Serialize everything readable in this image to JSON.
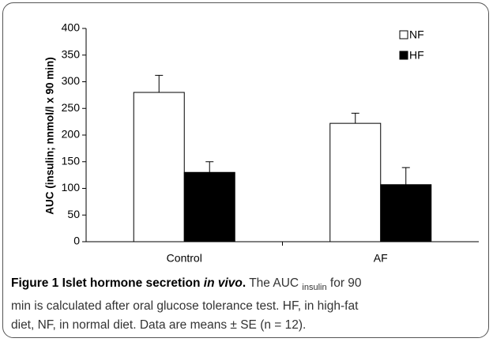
{
  "chart_data": {
    "type": "bar",
    "ylabel": "AUC (insulin; nnmol/l x 90 min)",
    "categories": [
      "Control",
      "AF"
    ],
    "series": [
      {
        "name": "NF",
        "color": "#ffffff",
        "values": [
          280,
          222
        ],
        "errors": [
          32,
          19
        ]
      },
      {
        "name": "HF",
        "color": "#000000",
        "values": [
          130,
          107
        ],
        "errors": [
          20,
          32
        ]
      }
    ],
    "ylim": [
      0,
      400
    ],
    "yticks": [
      0,
      50,
      100,
      150,
      200,
      250,
      300,
      350,
      400
    ],
    "legend": "upper right",
    "grid": false
  },
  "caption": [
    "Figure 1 Islet hormone secretion ",
    "in vivo",
    ".",
    " The AUC ",
    "insulin",
    " for 90",
    "min is calculated after oral glucose tolerance test. HF, in high-fat",
    "diet, NF, in normal diet. Data are means ± SE (n = 12)."
  ]
}
